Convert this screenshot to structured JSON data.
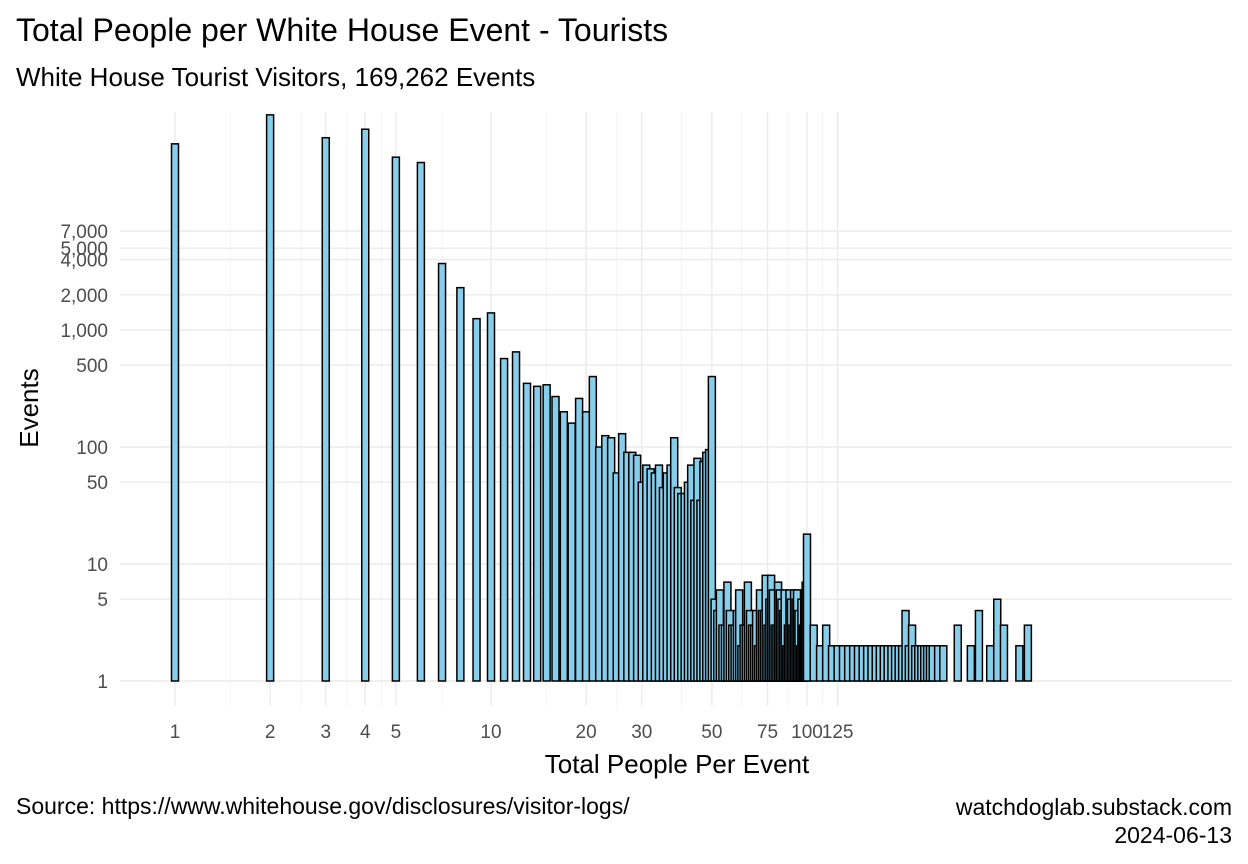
{
  "chart_data": {
    "type": "bar",
    "title": "Total People per White House Event - Tourists",
    "subtitle": "White House Tourist Visitors, 169,262 Events",
    "xlabel": "Total People Per Event",
    "ylabel": "Events",
    "x_scale": "log",
    "y_scale": "log",
    "grid": true,
    "bar_fill": "#87CEEB",
    "bar_stroke": "#000000",
    "x_ticks": [
      {
        "value": 1,
        "label": "1"
      },
      {
        "value": 2,
        "label": "2"
      },
      {
        "value": 3,
        "label": "3"
      },
      {
        "value": 4,
        "label": "4"
      },
      {
        "value": 5,
        "label": "5"
      },
      {
        "value": 10,
        "label": "10"
      },
      {
        "value": 20,
        "label": "20"
      },
      {
        "value": 30,
        "label": "30"
      },
      {
        "value": 50,
        "label": "50"
      },
      {
        "value": 75,
        "label": "75"
      },
      {
        "value": 100,
        "label": "100"
      },
      {
        "value": 125,
        "label": "125"
      }
    ],
    "y_ticks": [
      {
        "value": 1,
        "label": "1"
      },
      {
        "value": 5,
        "label": "5"
      },
      {
        "value": 10,
        "label": "10"
      },
      {
        "value": 50,
        "label": "50"
      },
      {
        "value": 100,
        "label": "100"
      },
      {
        "value": 500,
        "label": "500"
      },
      {
        "value": 1000,
        "label": "1,000"
      },
      {
        "value": 2000,
        "label": "2,000"
      },
      {
        "value": 4000,
        "label": "4,000"
      },
      {
        "value": 5000,
        "label": "5,000"
      },
      {
        "value": 7000,
        "label": "7,000"
      }
    ],
    "x": [
      1,
      2,
      3,
      4,
      5,
      6,
      7,
      8,
      9,
      10,
      11,
      12,
      13,
      14,
      15,
      16,
      17,
      18,
      19,
      20,
      21,
      22,
      23,
      24,
      25,
      26,
      27,
      28,
      29,
      30,
      31,
      32,
      33,
      34,
      35,
      36,
      37,
      38,
      39,
      40,
      41,
      42,
      43,
      44,
      45,
      46,
      47,
      48,
      49,
      50,
      51,
      52,
      53,
      54,
      55,
      56,
      57,
      58,
      59,
      60,
      61,
      62,
      63,
      64,
      65,
      66,
      67,
      68,
      69,
      70,
      71,
      72,
      73,
      74,
      75,
      76,
      77,
      78,
      79,
      80,
      81,
      82,
      83,
      84,
      85,
      86,
      87,
      88,
      89,
      90,
      91,
      92,
      93,
      94,
      95,
      96,
      97,
      98,
      99,
      100,
      105,
      110,
      115,
      120,
      125,
      130,
      135,
      140,
      145,
      150,
      155,
      160,
      165,
      170,
      175,
      180,
      185,
      190,
      195,
      200,
      205,
      210,
      215,
      220,
      225,
      230,
      235,
      240,
      245,
      250,
      260,
      270,
      300,
      330,
      350,
      380,
      400,
      420,
      470,
      500
    ],
    "values": [
      39000,
      69000,
      44000,
      52000,
      30000,
      27000,
      3700,
      2300,
      1250,
      1400,
      570,
      650,
      350,
      330,
      340,
      270,
      200,
      160,
      260,
      200,
      400,
      100,
      125,
      120,
      60,
      130,
      90,
      90,
      85,
      50,
      70,
      65,
      60,
      70,
      45,
      60,
      70,
      120,
      45,
      40,
      40,
      50,
      70,
      35,
      80,
      35,
      75,
      90,
      95,
      400,
      5,
      4,
      6,
      3,
      3,
      7,
      4,
      3,
      3,
      4,
      6,
      2,
      3,
      3,
      7,
      4,
      3,
      3,
      4,
      2,
      6,
      4,
      4,
      8,
      3,
      5,
      8,
      6,
      3,
      3,
      7,
      6,
      5,
      4,
      6,
      2,
      3,
      6,
      5,
      3,
      6,
      5,
      6,
      4,
      2,
      5,
      3,
      6,
      7,
      18,
      3,
      2,
      3,
      2,
      2,
      2,
      2,
      2,
      2,
      2,
      2,
      2,
      2,
      2,
      2,
      2,
      2,
      2,
      2,
      2,
      4,
      2,
      3,
      2,
      2,
      2,
      2,
      2,
      2,
      2,
      2,
      2,
      3,
      2,
      4,
      2,
      5,
      3,
      2,
      3
    ]
  },
  "source": "Source: https://www.whitehouse.gov/disclosures/visitor-logs/",
  "credit_site": "watchdoglab.substack.com",
  "credit_date": "2024-06-13"
}
